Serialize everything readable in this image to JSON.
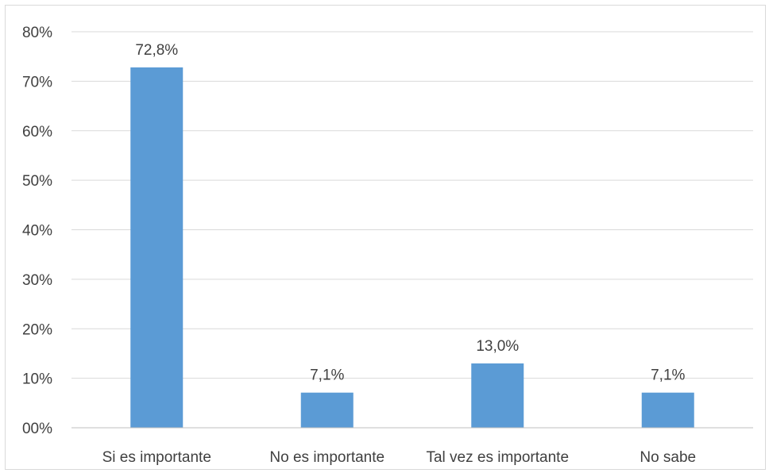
{
  "chart_data": {
    "type": "bar",
    "categories": [
      "Si es importante",
      "No es importante",
      "Tal vez es importante",
      "No sabe"
    ],
    "values": [
      72.8,
      7.1,
      13.0,
      7.1
    ],
    "data_labels": [
      "72,8%",
      "7,1%",
      "13,0%",
      "7,1%"
    ],
    "ylim": [
      0,
      80
    ],
    "y_ticks": [
      0,
      10,
      20,
      30,
      40,
      50,
      60,
      70,
      80
    ],
    "y_tick_labels": [
      "00%",
      "10%",
      "20%",
      "30%",
      "40%",
      "50%",
      "60%",
      "70%",
      "80%"
    ],
    "title": "",
    "xlabel": "",
    "ylabel": "",
    "grid": true,
    "legend": "none",
    "bar_color": "#5b9bd5"
  }
}
